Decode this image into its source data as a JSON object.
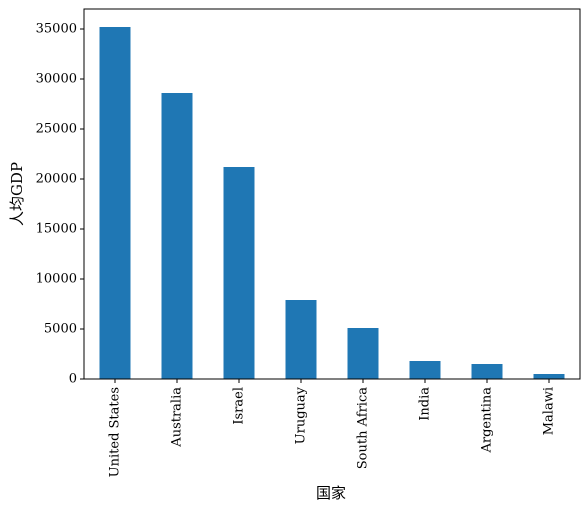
{
  "chart_data": {
    "type": "bar",
    "xlabel": "国家",
    "ylabel": "人均GDP",
    "categories": [
      "United States",
      "Australia",
      "Israel",
      "Uruguay",
      "South Africa",
      "India",
      "Argentina",
      "Malawi"
    ],
    "values": [
      35200,
      28600,
      21200,
      7900,
      5100,
      1800,
      1500,
      500
    ],
    "color": "#1f77b4",
    "ylim": [
      0,
      37000
    ],
    "yticks": [
      0,
      5000,
      10000,
      15000,
      20000,
      25000,
      30000,
      35000
    ]
  }
}
